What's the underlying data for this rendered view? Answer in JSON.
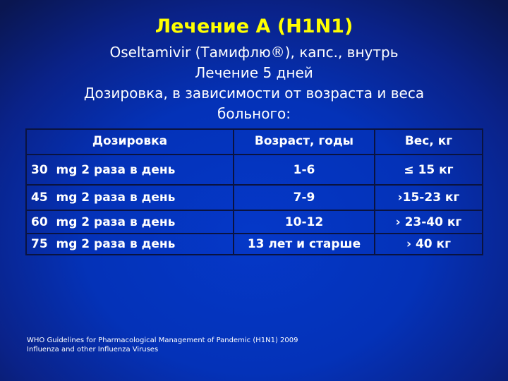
{
  "title": "Лечение А (H1N1)",
  "subtitle": [
    "Oseltamivir (Тамифлю®), капс., внутрь",
    "Лечение 5 дней",
    "Дозировка, в зависимости от возраста и веса",
    "больного:"
  ],
  "table": {
    "headers": [
      "Дозировка",
      "Возраст, годы",
      "Вес, кг"
    ],
    "rows": [
      [
        "30  mg 2 раза в день",
        "1-6",
        "≤ 15 кг"
      ],
      [
        "45  mg 2 раза в день",
        "7-9",
        "›15-23 кг"
      ],
      [
        "60  mg 2 раза в день",
        "10-12",
        "› 23-40 кг"
      ],
      [
        "75  mg 2 раза в день",
        "13 лет и старше",
        "› 40 кг"
      ]
    ]
  },
  "source": [
    "WHO Guidelines for Pharmacological Management of Pandemic (H1N1) 2009",
    "Influenza and other Influenza Viruses"
  ]
}
